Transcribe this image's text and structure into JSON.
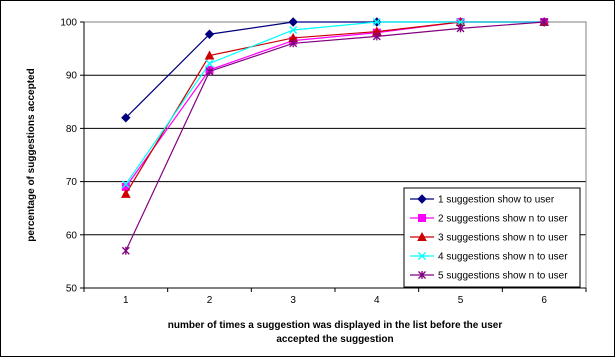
{
  "chart_data": {
    "type": "line",
    "x": [
      1,
      2,
      3,
      4,
      5,
      6
    ],
    "xlabel_lines": [
      "number of times a suggestion was displayed in the list before the user",
      "accepted the suggestion"
    ],
    "ylabel": "percentage of suggestions accepted",
    "ylim": [
      50,
      100
    ],
    "yticks": [
      50,
      60,
      70,
      80,
      90,
      100
    ],
    "grid": "horizontal major lines",
    "legend_position": "bottom-right",
    "series": [
      {
        "name": "1 suggestion show  to user",
        "values": [
          82,
          97.7,
          100,
          100,
          100,
          100
        ],
        "color": "#000080",
        "marker": "diamond"
      },
      {
        "name": "2 suggestions show n to user",
        "values": [
          69,
          91,
          96.5,
          98,
          100,
          100
        ],
        "color": "#FF00FF",
        "marker": "square"
      },
      {
        "name": "3 suggestions show n to user",
        "values": [
          67.7,
          93.7,
          97,
          98.2,
          100,
          100
        ],
        "color": "#CC0000",
        "marker": "triangle"
      },
      {
        "name": "4 suggestions show n to user",
        "values": [
          69.5,
          92.2,
          98.5,
          100,
          100,
          100
        ],
        "color": "#00FFFF",
        "marker": "x"
      },
      {
        "name": "5 suggestions show n to user",
        "values": [
          57,
          90.7,
          96,
          97.3,
          98.8,
          100
        ],
        "color": "#800080",
        "marker": "star"
      }
    ]
  }
}
